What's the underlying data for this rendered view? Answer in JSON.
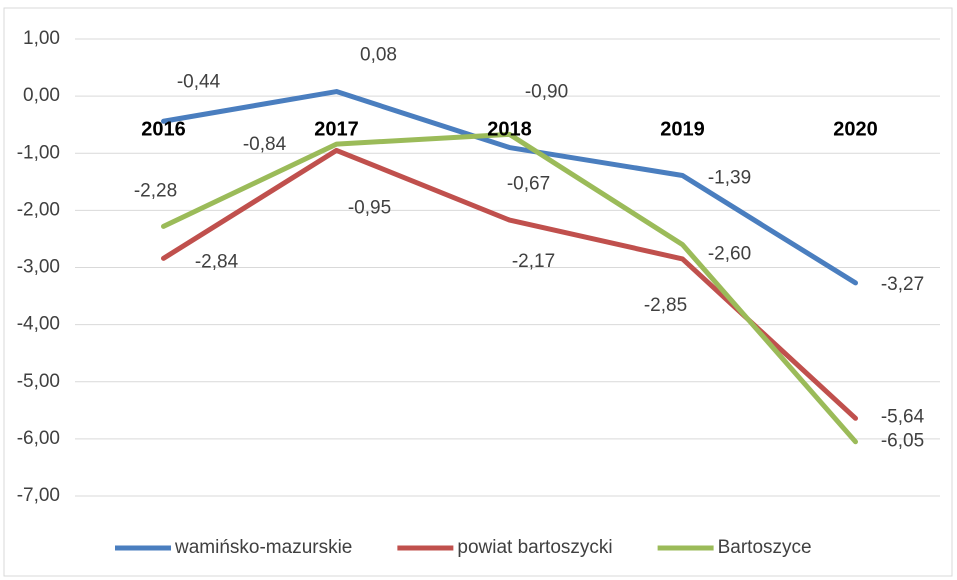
{
  "chart_data": {
    "type": "line",
    "categories": [
      "2016",
      "2017",
      "2018",
      "2019",
      "2020"
    ],
    "series": [
      {
        "name": "wamińsko-mazurskie",
        "color": "#4a7ebf",
        "values": [
          -0.44,
          0.08,
          -0.9,
          -1.39,
          -3.27
        ],
        "value_labels": [
          "-0,44",
          "0,08",
          "-0,90",
          "-1,39",
          "-3,27"
        ]
      },
      {
        "name": "powiat bartoszycki",
        "color": "#c0504d",
        "values": [
          -2.84,
          -0.95,
          -2.17,
          -2.85,
          -5.64
        ],
        "value_labels": [
          "-2,84",
          "-0,95",
          "-2,17",
          "-2,85",
          "-5,64"
        ]
      },
      {
        "name": "Bartoszyce",
        "color": "#9bbb59",
        "values": [
          -2.28,
          -0.84,
          -0.67,
          -2.6,
          -6.05
        ],
        "value_labels": [
          "-2,28",
          "-0,84",
          "-0,67",
          "-2,60",
          "-6,05"
        ]
      }
    ],
    "ylim": [
      -7,
      1
    ],
    "yticks": [
      {
        "value": 1,
        "label": "1,00"
      },
      {
        "value": 0,
        "label": "0,00"
      },
      {
        "value": -1,
        "label": "-1,00"
      },
      {
        "value": -2,
        "label": "-2,00"
      },
      {
        "value": -3,
        "label": "-3,00"
      },
      {
        "value": -4,
        "label": "-4,00"
      },
      {
        "value": -5,
        "label": "-5,00"
      },
      {
        "value": -6,
        "label": "-6,00"
      },
      {
        "value": -7,
        "label": "-7,00"
      }
    ],
    "grid": true,
    "legend": "bottom"
  }
}
